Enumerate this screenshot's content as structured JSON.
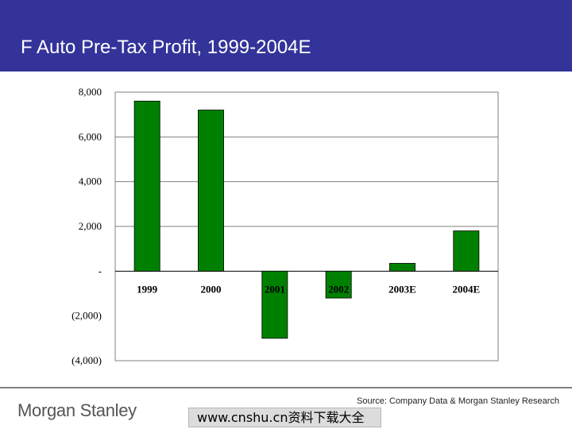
{
  "header": {
    "title": "F Auto Pre-Tax Profit, 1999-2004E"
  },
  "chart_data": {
    "type": "bar",
    "title": "",
    "xlabel": "",
    "ylabel": "",
    "categories": [
      "1999",
      "2000",
      "2001",
      "2002",
      "2003E",
      "2004E"
    ],
    "values": [
      7600,
      7200,
      -3000,
      -1200,
      350,
      1800
    ],
    "ylim": [
      -4000,
      8000
    ],
    "yticks": [
      8000,
      6000,
      4000,
      2000,
      0,
      -2000,
      -4000
    ],
    "ytick_labels": [
      "8,000",
      "6,000",
      "4,000",
      "2,000",
      "-",
      "(2,000)",
      "(4,000)"
    ],
    "grid": true,
    "legend": "none",
    "bar_color": "#008000",
    "grid_color": "#808080"
  },
  "footer": {
    "source": "Source: Company Data & Morgan Stanley Research",
    "logo": "Morgan Stanley",
    "watermark": "www.cnshu.cn资料下载大全"
  }
}
